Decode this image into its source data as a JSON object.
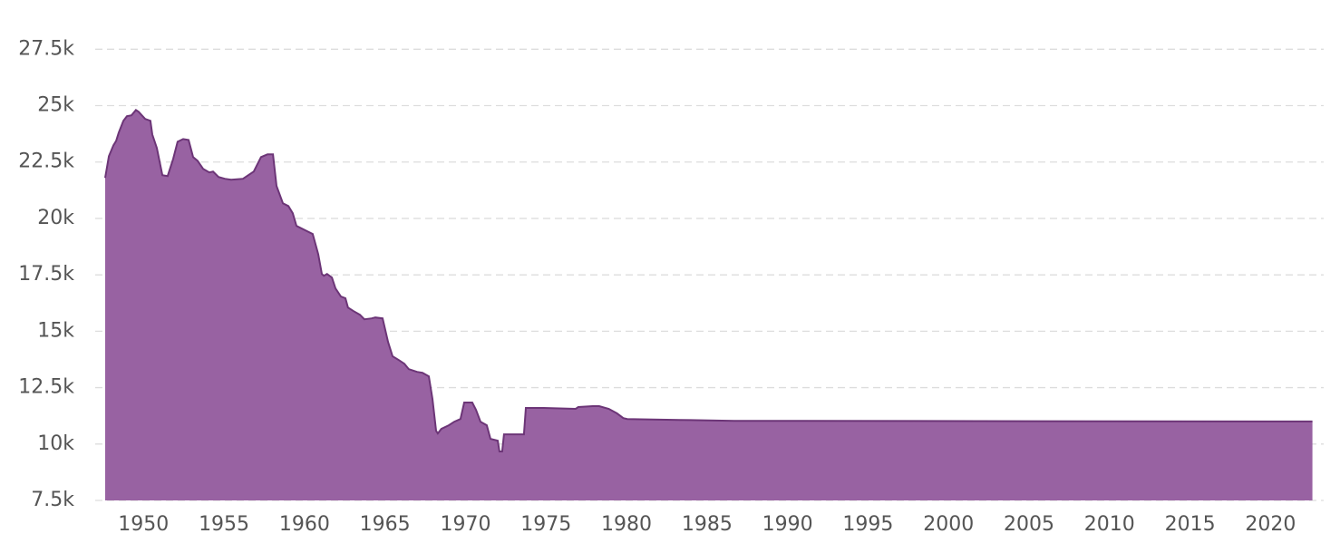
{
  "chart_data": {
    "type": "area",
    "color": "#9862a2",
    "line_color": "#6c3577",
    "grid": true,
    "xlim": [
      1947,
      2023.3
    ],
    "ylim": [
      7500,
      29000
    ],
    "xticks": [
      1950,
      1955,
      1960,
      1965,
      1970,
      1975,
      1980,
      1985,
      1990,
      1995,
      2000,
      2005,
      2010,
      2015,
      2020
    ],
    "yticks": [
      {
        "value": 7500,
        "label": "7.5k"
      },
      {
        "value": 10000,
        "label": "10k"
      },
      {
        "value": 12500,
        "label": "12.5k"
      },
      {
        "value": 15000,
        "label": "15k"
      },
      {
        "value": 17500,
        "label": "17.5k"
      },
      {
        "value": 20000,
        "label": "20k"
      },
      {
        "value": 22500,
        "label": "22.5k"
      },
      {
        "value": 25000,
        "label": "25k"
      },
      {
        "value": 27500,
        "label": "27.5k"
      }
    ],
    "x": [
      1947.62,
      1947.85,
      1948.13,
      1948.3,
      1948.46,
      1948.75,
      1948.97,
      1949.25,
      1949.53,
      1949.7,
      1950.1,
      1950.43,
      1950.55,
      1950.83,
      1951.17,
      1951.5,
      1951.84,
      1952.12,
      1952.46,
      1952.8,
      1953.08,
      1953.36,
      1953.7,
      1954.09,
      1954.32,
      1954.66,
      1955.05,
      1955.44,
      1956.18,
      1956.85,
      1957.02,
      1957.3,
      1957.7,
      1958.04,
      1958.26,
      1958.66,
      1959.0,
      1959.27,
      1959.5,
      1959.84,
      1960.51,
      1960.85,
      1961.08,
      1961.2,
      1961.4,
      1961.7,
      1961.92,
      1962.26,
      1962.54,
      1962.7,
      1963.05,
      1963.44,
      1963.72,
      1964.17,
      1964.4,
      1964.85,
      1965.19,
      1965.47,
      1965.86,
      1966.2,
      1966.48,
      1966.99,
      1967.33,
      1967.72,
      1967.95,
      1968.17,
      1968.28,
      1968.5,
      1968.96,
      1969.3,
      1969.69,
      1969.92,
      1970.42,
      1970.65,
      1970.93,
      1971.32,
      1971.55,
      1972.0,
      1972.11,
      1972.28,
      1972.39,
      1973.63,
      1973.75,
      1974.87,
      1976.84,
      1977.0,
      1977.9,
      1978.3,
      1978.9,
      1979.4,
      1979.8,
      1980.05,
      1983.3,
      1986.7,
      2022.6
    ],
    "values": [
      21800,
      22760,
      23240,
      23440,
      23800,
      24330,
      24530,
      24570,
      24810,
      24730,
      24410,
      24330,
      23720,
      23120,
      21920,
      21880,
      22640,
      23400,
      23520,
      23480,
      22720,
      22560,
      22200,
      22040,
      22080,
      21840,
      21760,
      21720,
      21760,
      22080,
      22320,
      22720,
      22840,
      22840,
      21440,
      20670,
      20550,
      20230,
      19670,
      19550,
      19310,
      18420,
      17540,
      17460,
      17540,
      17380,
      16900,
      16540,
      16460,
      16050,
      15890,
      15730,
      15530,
      15570,
      15610,
      15570,
      14530,
      13890,
      13720,
      13560,
      13320,
      13200,
      13160,
      13000,
      12000,
      10590,
      10470,
      10670,
      10830,
      10990,
      11110,
      11840,
      11840,
      11520,
      10990,
      10830,
      10230,
      10150,
      9670,
      9670,
      10430,
      10430,
      11600,
      11600,
      11560,
      11640,
      11680,
      11680,
      11560,
      11360,
      11150,
      11110,
      11070,
      11030,
      11000
    ]
  }
}
